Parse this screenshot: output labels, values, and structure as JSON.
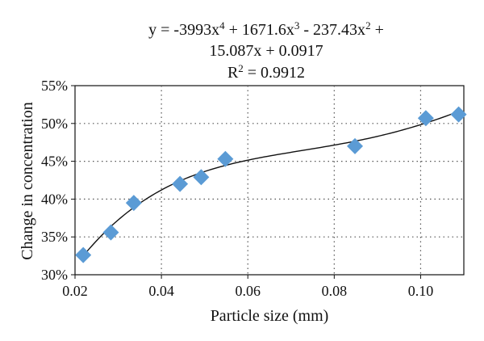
{
  "chart_data": {
    "type": "scatter",
    "title": "",
    "xlabel": "Particle size (mm)",
    "ylabel": "Change in concentration",
    "xlim": [
      0.02,
      0.11
    ],
    "ylim": [
      0.3,
      0.55
    ],
    "x_ticks": [
      0.02,
      0.04,
      0.06,
      0.08,
      0.1
    ],
    "x_tick_labels": [
      "0.02",
      "0.04",
      "0.06",
      "0.08",
      "0.10"
    ],
    "y_ticks": [
      0.3,
      0.35,
      0.4,
      0.45,
      0.5,
      0.55
    ],
    "y_tick_labels": [
      "30%",
      "35%",
      "40%",
      "45%",
      "50%",
      "55%"
    ],
    "grid": "dotted",
    "legend": "none",
    "marker": "diamond",
    "marker_color": "#5b9bd5",
    "trendline_color": "#111111",
    "points": [
      {
        "x": 0.0219,
        "y": 0.326
      },
      {
        "x": 0.0283,
        "y": 0.356
      },
      {
        "x": 0.0336,
        "y": 0.395
      },
      {
        "x": 0.0443,
        "y": 0.42
      },
      {
        "x": 0.0492,
        "y": 0.429
      },
      {
        "x": 0.0548,
        "y": 0.453
      },
      {
        "x": 0.0848,
        "y": 0.47
      },
      {
        "x": 0.1012,
        "y": 0.507
      },
      {
        "x": 0.1088,
        "y": 0.512
      }
    ],
    "trendline": {
      "type": "polynomial",
      "coefficients": [
        0.0917,
        15.087,
        -237.43,
        1671.6,
        -3993
      ],
      "equation_line1": "y = -3993x4 + 1671.6x3 - 237.43x2 +",
      "equation_line2": "15.087x + 0.0917",
      "r_squared_label": "R2 = 0.9912"
    }
  }
}
